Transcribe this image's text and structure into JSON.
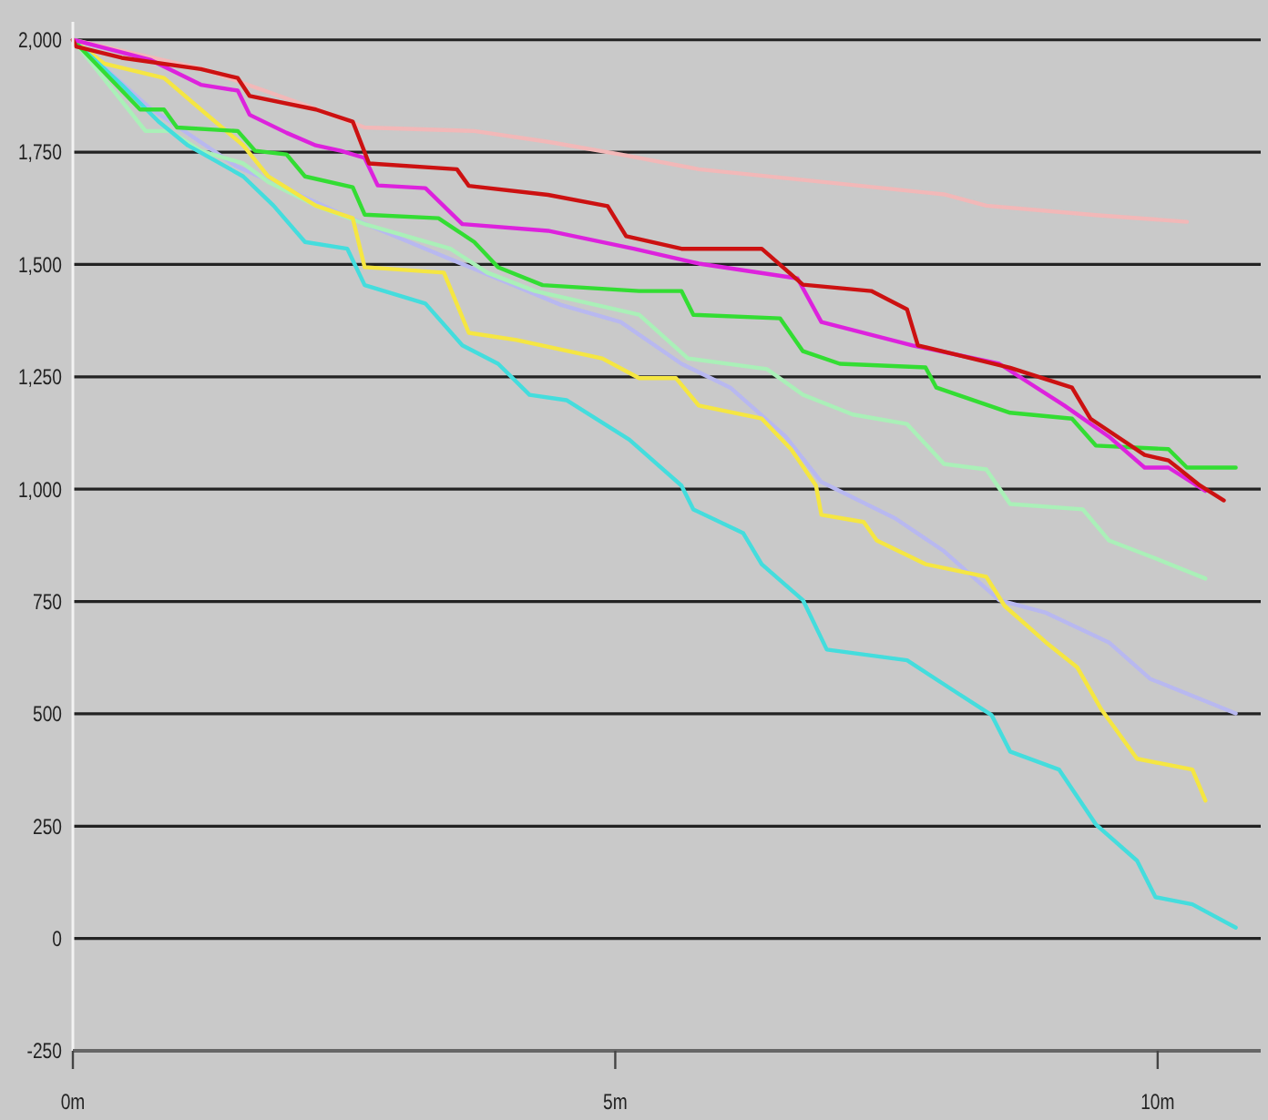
{
  "chart_data": {
    "type": "line",
    "xlim": [
      0,
      10.95
    ],
    "ylim": [
      -250,
      2040
    ],
    "xticks": [
      {
        "value": 0,
        "label": "0m"
      },
      {
        "value": 5,
        "label": "5m"
      },
      {
        "value": 10,
        "label": "10m"
      }
    ],
    "yticks": [
      {
        "value": -250,
        "label": "-250"
      },
      0,
      250,
      500,
      750,
      {
        "value": 1000,
        "label": "1,000"
      },
      {
        "value": 1250,
        "label": "1,250"
      },
      {
        "value": 1500,
        "label": "1,500"
      },
      {
        "value": 1750,
        "label": "1,750"
      },
      {
        "value": 2000,
        "label": "2,000"
      }
    ],
    "grid": "y",
    "series": [
      {
        "color": "#f2b8b8",
        "x": [
          0,
          1.2,
          2.2,
          2.69,
          3.7,
          4.38,
          5.05,
          5.77,
          6.9,
          8.03,
          8.42,
          9.43,
          10.27
        ],
        "values": [
          2000,
          1935,
          1850,
          1805,
          1797,
          1773,
          1745,
          1712,
          1684,
          1656,
          1631,
          1610,
          1595
        ]
      },
      {
        "color": "#b8b8f0",
        "x": [
          0,
          0.7,
          1.5,
          2.5,
          3.25,
          4.5,
          5.05,
          5.61,
          6.06,
          6.57,
          6.9,
          7.58,
          8.03,
          8.54,
          8.97,
          9.55,
          9.93,
          10.72
        ],
        "values": [
          2000,
          1850,
          1720,
          1610,
          1535,
          1410,
          1372,
          1279,
          1226,
          1117,
          1016,
          935,
          862,
          753,
          725,
          659,
          578,
          501
        ]
      },
      {
        "color": "#aaf0b8",
        "x": [
          0,
          0.67,
          0.89,
          1.18,
          1.57,
          1.8,
          2.24,
          2.69,
          3.48,
          3.82,
          4.26,
          5.22,
          5.67,
          6.4,
          6.73,
          7.19,
          7.69,
          8.03,
          8.42,
          8.64,
          9.31,
          9.55,
          9.98,
          10.44
        ],
        "values": [
          2000,
          1797,
          1797,
          1753,
          1725,
          1684,
          1631,
          1590,
          1535,
          1482,
          1441,
          1388,
          1291,
          1267,
          1210,
          1166,
          1145,
          1056,
          1044,
          967,
          955,
          886,
          846,
          801
        ]
      },
      {
        "color": "#f5e642",
        "x": [
          0,
          0.29,
          0.84,
          1.18,
          1.57,
          1.8,
          2.24,
          2.58,
          2.69,
          3.42,
          3.65,
          4.09,
          4.88,
          5.22,
          5.56,
          5.77,
          6.35,
          6.62,
          6.85,
          6.9,
          7.29,
          7.41,
          7.86,
          8.42,
          8.59,
          8.97,
          9.26,
          9.48,
          9.81,
          10.32,
          10.44
        ],
        "values": [
          2000,
          1947,
          1915,
          1845,
          1765,
          1696,
          1631,
          1603,
          1494,
          1482,
          1348,
          1332,
          1291,
          1247,
          1247,
          1186,
          1157,
          1089,
          1008,
          943,
          927,
          886,
          833,
          805,
          740,
          659,
          603,
          510,
          400,
          376,
          307
        ]
      },
      {
        "color": "#44dddd",
        "x": [
          0,
          0.45,
          0.79,
          1.06,
          1.57,
          1.85,
          2.14,
          2.53,
          2.69,
          3.25,
          3.59,
          3.92,
          4.21,
          4.55,
          5.13,
          5.61,
          5.72,
          6.18,
          6.35,
          6.73,
          6.95,
          7.69,
          8.13,
          8.47,
          8.64,
          9.09,
          9.43,
          9.81,
          9.98,
          10.32,
          10.72
        ],
        "values": [
          2000,
          1900,
          1818,
          1765,
          1696,
          1631,
          1550,
          1535,
          1454,
          1413,
          1320,
          1279,
          1210,
          1198,
          1110,
          1008,
          955,
          902,
          833,
          753,
          643,
          619,
          550,
          497,
          416,
          376,
          254,
          173,
          92,
          76,
          24
        ]
      },
      {
        "color": "#33dd33",
        "x": [
          0,
          0.62,
          0.84,
          0.96,
          1.52,
          1.68,
          1.97,
          2.14,
          2.58,
          2.69,
          3.37,
          3.7,
          3.92,
          4.33,
          5.22,
          5.61,
          5.72,
          6.52,
          6.73,
          7.07,
          7.86,
          7.96,
          8.64,
          9.21,
          9.43,
          10.1,
          10.27,
          10.72
        ],
        "values": [
          2000,
          1845,
          1845,
          1805,
          1797,
          1753,
          1745,
          1696,
          1672,
          1611,
          1603,
          1550,
          1494,
          1454,
          1441,
          1441,
          1388,
          1380,
          1307,
          1279,
          1271,
          1226,
          1170,
          1157,
          1097,
          1089,
          1048,
          1048
        ]
      },
      {
        "color": "#dd22dd",
        "x": [
          0,
          0.72,
          1.18,
          1.52,
          1.63,
          1.97,
          2.24,
          2.47,
          2.69,
          2.81,
          3.25,
          3.59,
          4.38,
          5.17,
          5.77,
          6.68,
          6.9,
          7.74,
          8.54,
          9.14,
          9.55,
          9.88,
          10.1,
          10.44
        ],
        "values": [
          2000,
          1955,
          1900,
          1887,
          1833,
          1793,
          1765,
          1753,
          1737,
          1676,
          1670,
          1590,
          1575,
          1535,
          1502,
          1469,
          1372,
          1320,
          1279,
          1186,
          1117,
          1048,
          1048,
          996
        ]
      },
      {
        "color": "#cc1111",
        "x": [
          0,
          0.03,
          0.45,
          1.18,
          1.52,
          1.63,
          2.24,
          2.58,
          2.73,
          3.54,
          3.65,
          4.38,
          4.93,
          5.1,
          5.61,
          6.35,
          6.73,
          7.36,
          7.69,
          7.79,
          8.64,
          9.21,
          9.38,
          9.88,
          10.1,
          10.39,
          10.61
        ],
        "values": [
          2000,
          1985,
          1960,
          1935,
          1915,
          1875,
          1845,
          1818,
          1725,
          1712,
          1675,
          1655,
          1630,
          1563,
          1535,
          1535,
          1455,
          1441,
          1400,
          1320,
          1270,
          1226,
          1157,
          1076,
          1064,
          1008,
          975
        ]
      }
    ]
  }
}
